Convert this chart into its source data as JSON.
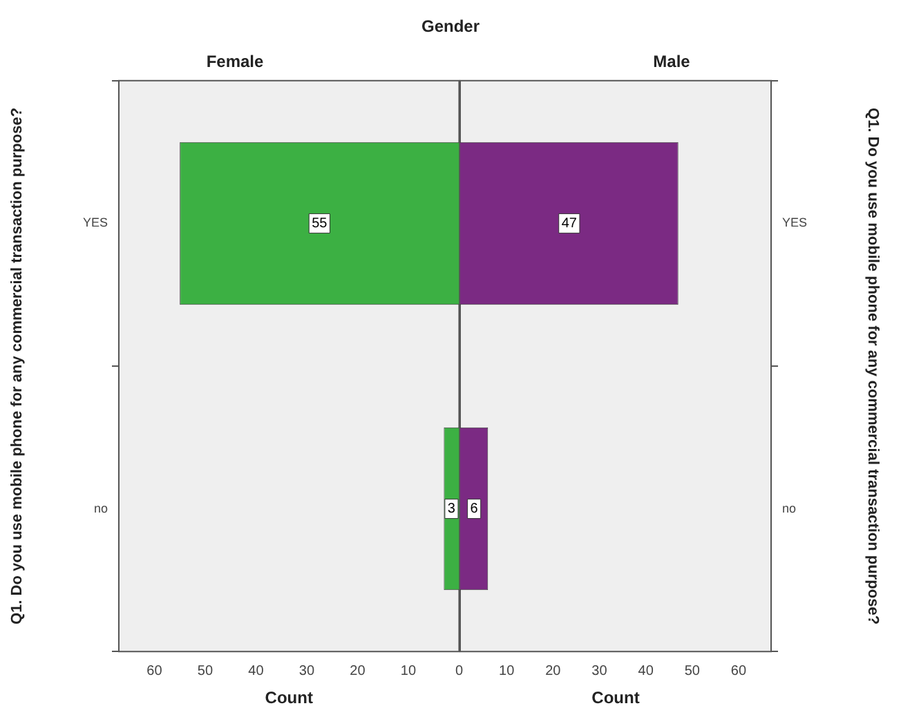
{
  "chart_data": [
    {
      "type": "bar",
      "orientation": "horizontal",
      "title": "Female",
      "annotations": [
        "Gender"
      ],
      "xlabel": "Count",
      "ylabel": "Q1. Do you use mobile phone for any commercial transaction purpose?",
      "categories": [
        "YES",
        "no"
      ],
      "values": [
        55,
        3
      ],
      "color": "#3cb043",
      "xlim": [
        67,
        0
      ],
      "xticks": [
        60,
        50,
        40,
        30,
        20,
        10,
        0
      ],
      "data_labels": true,
      "grid": false,
      "legend": false
    },
    {
      "type": "bar",
      "orientation": "horizontal",
      "title": "Male",
      "xlabel": "Count",
      "ylabel": "Q1. Do you use mobile phone for any commercial transaction purpose?",
      "categories": [
        "YES",
        "no"
      ],
      "values": [
        47,
        6
      ],
      "color": "#7b2a83",
      "xlim": [
        0,
        67
      ],
      "xticks": [
        {
          "value": 0,
          "label": null
        },
        10,
        20,
        30,
        40,
        50,
        60
      ],
      "data_labels": true,
      "grid": false,
      "legend": false
    }
  ]
}
